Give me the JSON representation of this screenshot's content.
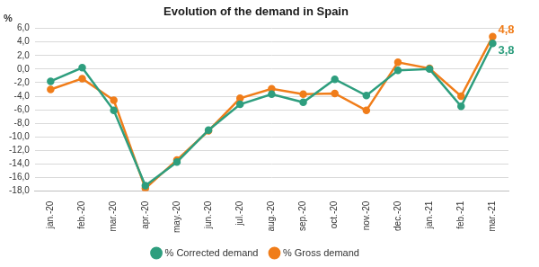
{
  "chart_data": {
    "type": "line",
    "title": "Evolution of the demand in Spain",
    "ylabel": "%",
    "categories": [
      "jan.-20",
      "feb.-20",
      "mar.-20",
      "apr.-20",
      "may.-20",
      "jun.-20",
      "jul.-20",
      "aug.-20",
      "sep.-20",
      "oct.-20",
      "nov.-20",
      "dec.-20",
      "jan.-21",
      "feb.-21",
      "mar.-21"
    ],
    "series": [
      {
        "name": "% Corrected demand",
        "color": "#2e9e7e",
        "marker": "circle",
        "line_style": "solid",
        "values": [
          -1.8,
          0.2,
          -6.1,
          -17.2,
          -13.7,
          -9.0,
          -5.2,
          -3.7,
          -4.9,
          -1.5,
          -3.9,
          -0.2,
          0.0,
          -5.5,
          3.8
        ],
        "value_labels": [
          null,
          null,
          null,
          null,
          null,
          null,
          null,
          null,
          null,
          null,
          null,
          null,
          null,
          null,
          "3,8"
        ]
      },
      {
        "name": "% Gross demand",
        "color": "#f07d1a",
        "marker": "circle",
        "line_style": "solid",
        "values": [
          -3.0,
          -1.4,
          -4.6,
          -17.6,
          -13.4,
          -9.1,
          -4.3,
          -2.9,
          -3.7,
          -3.6,
          -6.1,
          1.0,
          0.1,
          -4.0,
          4.8
        ],
        "value_labels": [
          null,
          null,
          null,
          null,
          null,
          null,
          null,
          null,
          null,
          null,
          null,
          null,
          null,
          null,
          "4,8"
        ]
      }
    ],
    "ylim": [
      -18,
      6
    ],
    "yticks": [
      {
        "value": -18,
        "label": "-18,0"
      },
      {
        "value": -16,
        "label": "-16,0"
      },
      {
        "value": -14,
        "label": "-14,0"
      },
      {
        "value": -12,
        "label": "-12,0"
      },
      {
        "value": -10,
        "label": "-10,0"
      },
      {
        "value": -8,
        "label": "-8,0"
      },
      {
        "value": -6,
        "label": "-6,0"
      },
      {
        "value": -4,
        "label": "-4,0"
      },
      {
        "value": -2,
        "label": "-2,0"
      },
      {
        "value": 0,
        "label": "0,0"
      },
      {
        "value": 2,
        "label": "2,0"
      },
      {
        "value": 4,
        "label": "4,0"
      },
      {
        "value": 6,
        "label": "6,0"
      }
    ],
    "grid": true,
    "legend": "bottom"
  }
}
